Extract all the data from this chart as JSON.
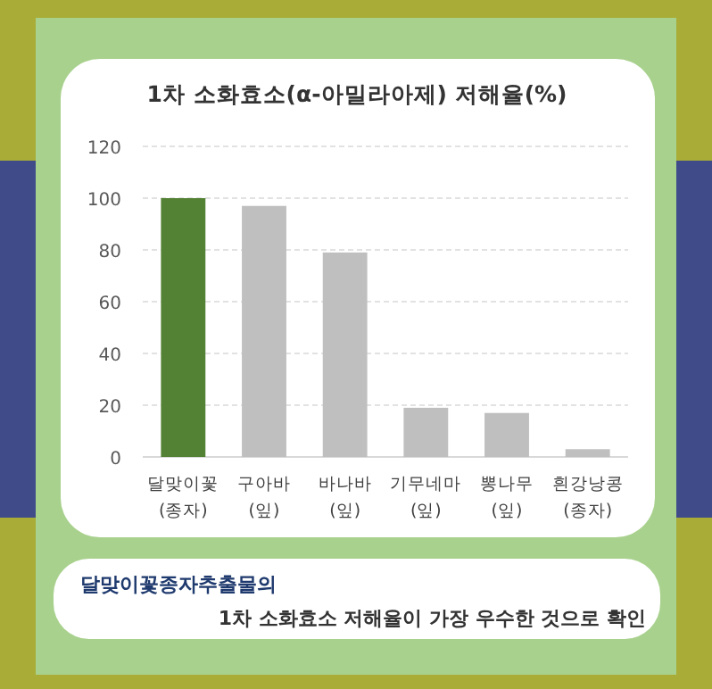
{
  "chart_data": {
    "type": "bar",
    "title": "1차 소화효소(α-아밀라아제) 저해율(%)",
    "categories": [
      "달맞이꽃\n(종자)",
      "구아바\n(잎)",
      "바나바\n(잎)",
      "기무네마\n(잎)",
      "뽕나무\n(잎)",
      "흰강낭콩\n(종자)"
    ],
    "values": [
      100,
      97,
      79,
      19,
      17,
      3
    ],
    "colors": [
      "#548235",
      "#bfbfbf",
      "#bfbfbf",
      "#bfbfbf",
      "#bfbfbf",
      "#bfbfbf"
    ],
    "ylim": [
      0,
      120
    ],
    "yticks": [
      0,
      20,
      40,
      60,
      80,
      100,
      120
    ],
    "grid": "y",
    "annotations": [
      "달맞이꽃종자추출물의",
      "1차 소화효소 저해율이 가장 우수한 것으로 확인"
    ]
  }
}
